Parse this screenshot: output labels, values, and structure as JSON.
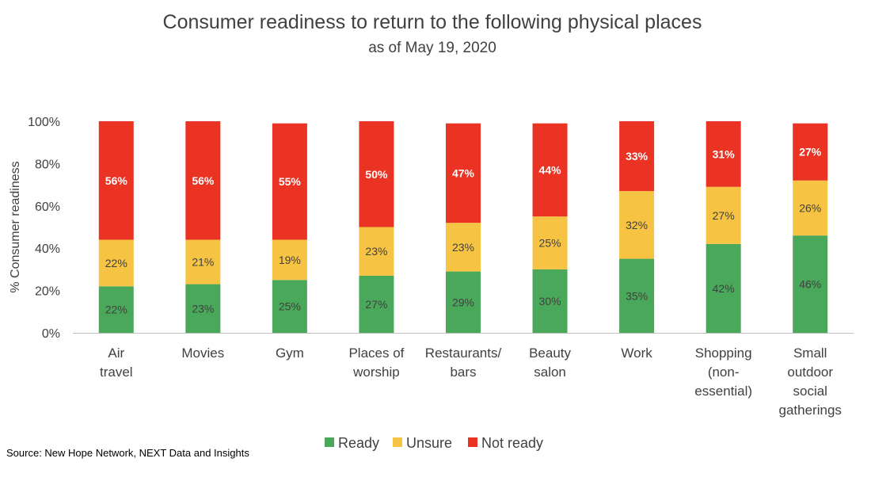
{
  "chart_data": {
    "type": "bar",
    "stacked": true,
    "title": "Consumer readiness to return to the following physical places",
    "subtitle": "as of May 19, 2020",
    "ylabel": "% Consumer readiness",
    "ylim": [
      0,
      100
    ],
    "yticks": [
      "0%",
      "20%",
      "40%",
      "60%",
      "80%",
      "100%"
    ],
    "categories": [
      [
        "Air",
        "travel"
      ],
      [
        "Movies"
      ],
      [
        "Gym"
      ],
      [
        "Places of",
        "worship"
      ],
      [
        "Restaurants/",
        "bars"
      ],
      [
        "Beauty",
        "salon"
      ],
      [
        "Work"
      ],
      [
        "Shopping",
        "(non-",
        "essential)"
      ],
      [
        "Small",
        "outdoor",
        "social",
        "gatherings"
      ]
    ],
    "series": [
      {
        "name": "Ready",
        "color": "#4aa85a",
        "values": [
          22,
          23,
          25,
          27,
          29,
          30,
          35,
          42,
          46
        ]
      },
      {
        "name": "Unsure",
        "color": "#f6c342",
        "values": [
          22,
          21,
          19,
          23,
          23,
          25,
          32,
          27,
          26
        ]
      },
      {
        "name": "Not ready",
        "color": "#ea3323",
        "values": [
          56,
          56,
          55,
          50,
          47,
          44,
          33,
          31,
          27
        ]
      }
    ],
    "legend_position": "bottom",
    "grid": false
  },
  "source": "Source: New Hope Network, NEXT Data and Insights"
}
